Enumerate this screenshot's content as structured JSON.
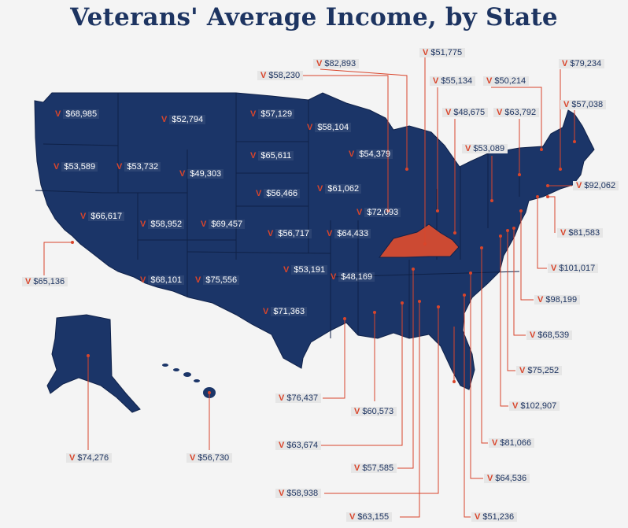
{
  "title": "Veterans' Average Income, by State",
  "colors": {
    "map_fill": "#1b3568",
    "highlight": "#cc4a33",
    "marker": "#d9452b",
    "text_dark": "#1d3461"
  },
  "marker_glyph": "V",
  "labels": {
    "WA": "$68,985",
    "MT": "$52,794",
    "ND": "$57,129",
    "MN": "$58,104",
    "SD": "$65,611",
    "WI": "$54,379",
    "OR": "$53,589",
    "ID": "$53,732",
    "WY": "$49,303",
    "NE": "$56,466",
    "IA": "$61,062",
    "NV": "$66,617",
    "UT": "$58,952",
    "CO": "$69,457",
    "KS": "$56,717",
    "MO": "$64,433",
    "IL": "$72,093",
    "AZ": "$68,101",
    "NM": "$75,556",
    "OK": "$53,191",
    "AR": "$48,169",
    "TX": "$71,363",
    "CA": "$65,136",
    "AK": "$74,276",
    "HI": "$56,730",
    "LA": "$76,437",
    "MS": "$60,573",
    "TN": "$63,674",
    "AL": "$57,585",
    "GA": "$58,938",
    "FL": "$63,155",
    "SC": "$51,236",
    "NC": "$64,536",
    "VA": "$81,066",
    "MD": "$102,907",
    "DC": "$75,252",
    "DE": "$68,539",
    "NJ": "$98,199",
    "CT": "$101,017",
    "RI": "$81,583",
    "MA": "$92,062",
    "ME": "$57,038",
    "NH": "$79,234",
    "VT": "$50,214",
    "NY": "$63,792",
    "PA": "$53,089",
    "WV": "$48,675",
    "OH": "$55,134",
    "KY": "$51,775",
    "MI": "$82,893",
    "IN": "$58,230"
  }
}
